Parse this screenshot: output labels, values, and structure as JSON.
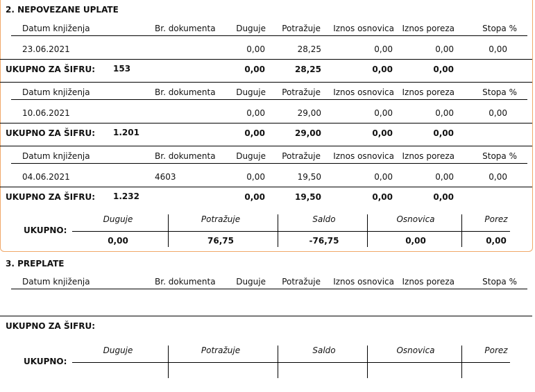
{
  "sections": [
    {
      "title": "2. NEPOVEZANE UPLATE",
      "groups": [
        {
          "header": [
            "Datum knjiženja",
            "Br. dokumenta",
            "Duguje",
            "Potražuje",
            "Iznos osnovica",
            "Iznos poreza",
            "Stopa %"
          ],
          "rows": [
            {
              "date": "23.06.2021",
              "duguje": "0,00",
              "potrazuje": "28,25",
              "osnovica": "0,00",
              "porez": "0,00",
              "stopa": "0,00"
            }
          ],
          "total_label": "UKUPNO ZA ŠIFRU:",
          "code": "153",
          "totals": [
            "0,00",
            "28,25",
            "0,00",
            "0,00"
          ]
        },
        {
          "header": [
            "Datum knjiženja",
            "Br. dokumenta",
            "Duguje",
            "Potražuje",
            "Iznos osnovica",
            "Iznos poreza",
            "Stopa %"
          ],
          "rows": [
            {
              "date": "10.06.2021",
              "duguje": "0,00",
              "potrazuje": "29,00",
              "osnovica": "0,00",
              "porez": "0,00",
              "stopa": "0,00"
            }
          ],
          "total_label": "UKUPNO ZA ŠIFRU:",
          "code": "1.201",
          "totals": [
            "0,00",
            "29,00",
            "0,00",
            "0,00"
          ]
        },
        {
          "header": [
            "Datum knjiženja",
            "Br. dokumenta",
            "Duguje",
            "Potražuje",
            "Iznos osnovica",
            "Iznos poreza",
            "Stopa %"
          ],
          "rows": [
            {
              "date": "04.06.2021",
              "document": "4603",
              "duguje": "0,00",
              "potrazuje": "19,50",
              "osnovica": "0,00",
              "porez": "0,00",
              "stopa": "0,00"
            }
          ],
          "total_label": "UKUPNO ZA ŠIFRU:",
          "code": "1.232",
          "totals": [
            "0,00",
            "19,50",
            "0,00",
            "0,00"
          ]
        }
      ],
      "summary": {
        "label": "UKUPNO:",
        "headers": [
          "Duguje",
          "Potražuje",
          "Saldo",
          "Osnovica",
          "Porez"
        ],
        "values": [
          "0,00",
          "76,75",
          "-76,75",
          "0,00",
          "0,00"
        ]
      }
    },
    {
      "title": "3. PREPLATE",
      "groups": [
        {
          "header": [
            "Datum knjiženja",
            "Br. dokumenta",
            "Duguje",
            "Potražuje",
            "Iznos osnovica",
            "Iznos poreza",
            "Stopa %"
          ],
          "rows": [],
          "total_label": "UKUPNO ZA ŠIFRU:"
        }
      ],
      "summary": {
        "label": "UKUPNO:",
        "headers": [
          "Duguje",
          "Potražuje",
          "Saldo",
          "Osnovica",
          "Porez"
        ]
      }
    }
  ]
}
